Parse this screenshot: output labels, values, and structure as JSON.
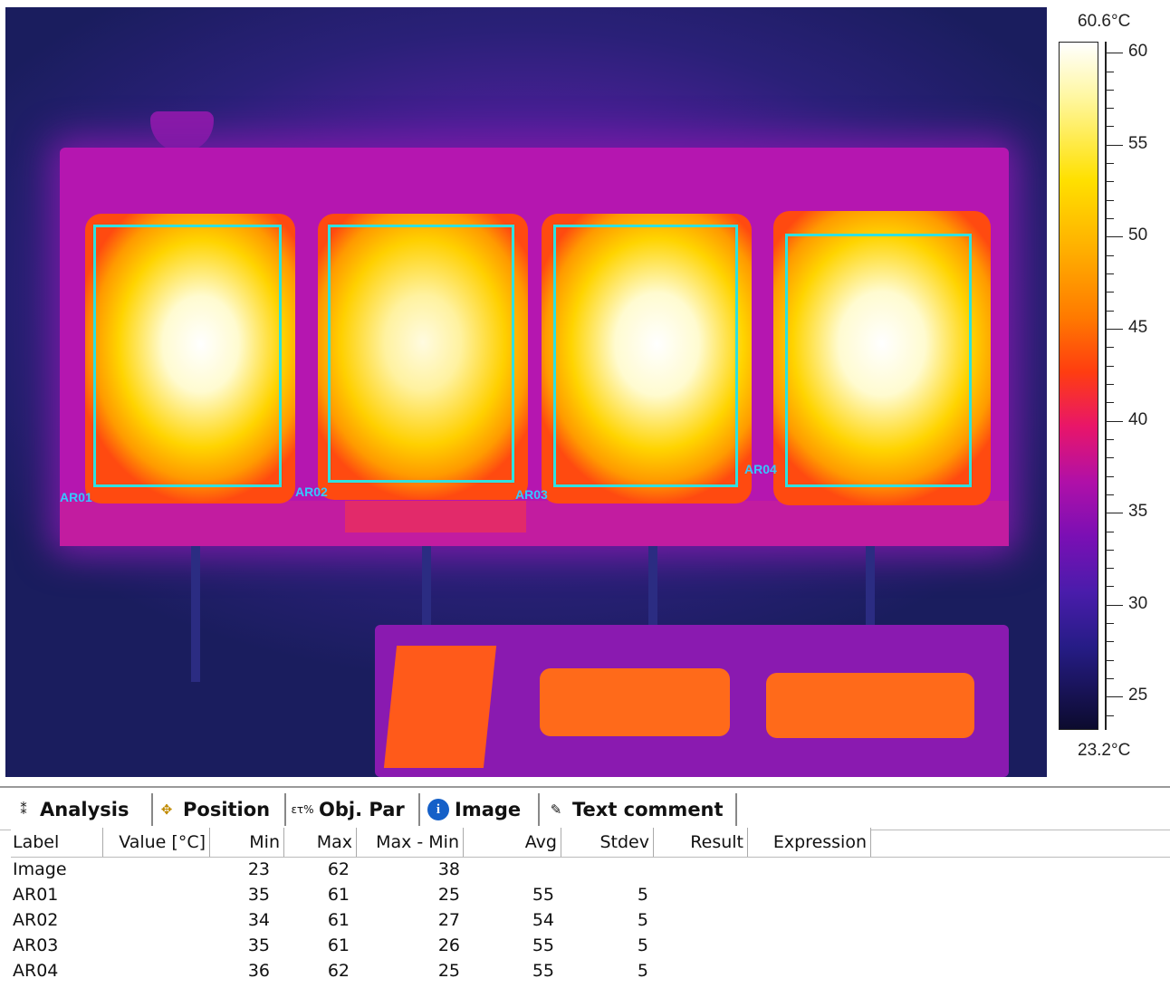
{
  "scale": {
    "max_label": "60.6°C",
    "min_label": "23.2°C",
    "min_value": 23.2,
    "max_value": 60.6,
    "ticks": [
      "60",
      "55",
      "50",
      "45",
      "40",
      "35",
      "30",
      "25"
    ],
    "palette": "iron"
  },
  "thermal_image": {
    "regions": [
      {
        "label": "AR01"
      },
      {
        "label": "AR02"
      },
      {
        "label": "AR03"
      },
      {
        "label": "AR04"
      }
    ],
    "roi_color": "#2fe0e0"
  },
  "tabs": [
    {
      "label": "Analysis",
      "icon": "analysis-icon"
    },
    {
      "label": "Position",
      "icon": "position-icon"
    },
    {
      "label": "Obj. Par",
      "icon": "object-parameters-icon"
    },
    {
      "label": "Image",
      "icon": "info-icon"
    },
    {
      "label": "Text comment",
      "icon": "text-comment-icon"
    }
  ],
  "table": {
    "columns": [
      "Label",
      "Value [°C]",
      "Min",
      "Max",
      "Max - Min",
      "Avg",
      "Stdev",
      "Result",
      "Expression"
    ],
    "rows": [
      {
        "label": "Image",
        "value": "",
        "min": "23",
        "max": "62",
        "range": "38",
        "avg": "",
        "stdev": ""
      },
      {
        "label": "AR01",
        "value": "",
        "min": "35",
        "max": "61",
        "range": "25",
        "avg": "55",
        "stdev": "5"
      },
      {
        "label": "AR02",
        "value": "",
        "min": "34",
        "max": "61",
        "range": "27",
        "avg": "54",
        "stdev": "5"
      },
      {
        "label": "AR03",
        "value": "",
        "min": "35",
        "max": "61",
        "range": "26",
        "avg": "55",
        "stdev": "5"
      },
      {
        "label": "AR04",
        "value": "",
        "min": "36",
        "max": "62",
        "range": "25",
        "avg": "55",
        "stdev": "5"
      }
    ]
  }
}
